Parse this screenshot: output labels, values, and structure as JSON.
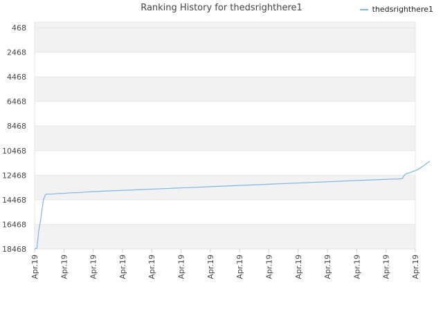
{
  "chart_data": {
    "type": "line",
    "title": "Ranking History for thedsrighthere1",
    "xlabel": "",
    "ylabel": "",
    "y_inverted": true,
    "ylim": [
      468,
      18468
    ],
    "y_ticks": [
      "468",
      "2468",
      "4468",
      "6468",
      "8468",
      "10468",
      "12468",
      "14468",
      "16468",
      "18468"
    ],
    "x_ticks": [
      "Apr.19",
      "Apr.19",
      "Apr.19",
      "Apr.19",
      "Apr.19",
      "Apr.19",
      "Apr.19",
      "Apr.19",
      "Apr.19",
      "Apr.19",
      "Apr.19",
      "Apr.19",
      "Apr.19",
      "Apr.19"
    ],
    "grid": true,
    "band_colors": [
      "#f2f2f2",
      "#ffffff"
    ],
    "legend_position": "top-right",
    "series": [
      {
        "name": "thedsrighthere1",
        "color": "#7cb5ec",
        "x": [
          0,
          0.08,
          0.1,
          0.14,
          0.2,
          0.3,
          0.36,
          0.4,
          0.46,
          0.6,
          0.8,
          1,
          1.2,
          1.5,
          2,
          2.5,
          3,
          3.5,
          4,
          4.5,
          5,
          5.5,
          6,
          6.5,
          7,
          7.5,
          8,
          8.5,
          9,
          9.5,
          10,
          10.5,
          11,
          11.5,
          12,
          12.4,
          12.55,
          12.65,
          13.05,
          13.25,
          13.5
        ],
        "y": [
          18468,
          18400,
          17900,
          17000,
          16200,
          14500,
          14100,
          14000,
          14000,
          14000,
          13950,
          13950,
          13900,
          13880,
          13800,
          13750,
          13700,
          13650,
          13600,
          13550,
          13500,
          13450,
          13400,
          13350,
          13300,
          13250,
          13200,
          13150,
          13100,
          13050,
          13000,
          12950,
          12900,
          12850,
          12800,
          12770,
          12750,
          12400,
          12050,
          11750,
          11320
        ]
      }
    ]
  }
}
